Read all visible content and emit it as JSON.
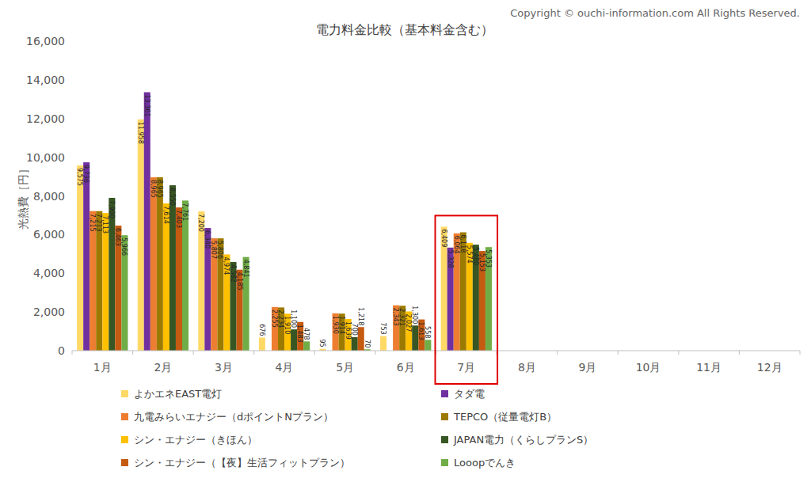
{
  "chart_data": {
    "type": "bar",
    "title": "電力料金比較（基本料金含む）",
    "annotations": [
      "Copyright © ouchi-information.com All Rights Reserved."
    ],
    "y_label": "光熱費［円］",
    "categories": [
      "1月",
      "2月",
      "3月",
      "4月",
      "5月",
      "6月",
      "7月",
      "8月",
      "9月",
      "10月",
      "11月",
      "12月"
    ],
    "ylim": [
      0,
      16000
    ],
    "yticks": [
      0,
      {
        "value": 2000,
        "label": "2,000"
      },
      {
        "value": 4000,
        "label": "4,000"
      },
      {
        "value": 6000,
        "label": "6,000"
      },
      {
        "value": 8000,
        "label": "8,000"
      },
      {
        "value": 10000,
        "label": "10,000"
      },
      {
        "value": 12000,
        "label": "12,000"
      },
      {
        "value": 14000,
        "label": "14,000"
      },
      {
        "value": 16000,
        "label": "16,000"
      }
    ],
    "grid": false,
    "data_labels": true,
    "legend": "bottom",
    "series": [
      {
        "name": "よかエネEAST電灯",
        "color": "#ffd966",
        "values": [
          9575,
          11958,
          7200,
          676,
          95,
          753,
          6409,
          null,
          null,
          null,
          null,
          null
        ],
        "value_labels": [
          "9,575",
          "11,958",
          "7,200",
          "676",
          "95",
          "753",
          "6,409",
          null,
          null,
          null,
          null,
          null
        ]
      },
      {
        "name": "タダ電",
        "color": "#7030a0",
        "values": [
          9736,
          13361,
          6340,
          null,
          null,
          null,
          5328,
          null,
          null,
          null,
          null,
          null
        ],
        "value_labels": [
          "9,736",
          "13,361",
          "6,340",
          null,
          null,
          null,
          "5,328",
          null,
          null,
          null,
          null,
          null
        ]
      },
      {
        "name": "九電みらいエナジー（dポイントNプラン）",
        "color": "#ed7d31",
        "values": [
          7215,
          8965,
          5807,
          2255,
          1930,
          2343,
          6064,
          null,
          null,
          null,
          null,
          null
        ],
        "value_labels": [
          "7,215",
          "8,965",
          "5,807",
          "2,255",
          "1,930",
          "2,343",
          "6,064",
          null,
          null,
          null,
          null,
          null
        ]
      },
      {
        "name": "TEPCO（従量電灯B）",
        "color": "#9c7a00",
        "values": [
          7213,
          8965,
          5806,
          2234,
          1914,
          2321,
          6118,
          null,
          null,
          null,
          null,
          null
        ],
        "value_labels": [
          "7,213",
          "8,965",
          "5,806",
          "2,234",
          "1,914",
          "2,321",
          "6,118",
          null,
          null,
          null,
          null,
          null
        ]
      },
      {
        "name": "シン・エナジー（きほん）",
        "color": "#ffc000",
        "values": [
          7113,
          7614,
          4974,
          1910,
          1639,
          2027,
          5574,
          null,
          null,
          null,
          null,
          null
        ],
        "value_labels": [
          "7,113",
          "7,614",
          "4,974",
          "1,910",
          "1,639",
          "2,027",
          "5,574",
          null,
          null,
          null,
          null,
          null
        ]
      },
      {
        "name": "JAPAN電力（くらしプランS）",
        "color": "#375623",
        "values": [
          7900,
          8550,
          4582,
          1100,
          700,
          1300,
          5480,
          null,
          null,
          null,
          null,
          null
        ],
        "value_labels": [
          "7,900",
          "8,550",
          "4,582",
          "1,100",
          "700",
          "1,300",
          "5,480",
          null,
          null,
          null,
          null,
          null
        ]
      },
      {
        "name": "シン・エナジー（【夜】生活フィットプラン）",
        "color": "#c55a11",
        "values": [
          6463,
          7403,
          4185,
          1483,
          1218,
          1613,
          5153,
          null,
          null,
          null,
          null,
          null
        ],
        "value_labels": [
          "6,463",
          "7,403",
          "4,185",
          "1,483",
          "1,218",
          "1,613",
          "5,153",
          null,
          null,
          null,
          null,
          null
        ]
      },
      {
        "name": "Looopでんき",
        "color": "#70ad47",
        "values": [
          5966,
          7761,
          4841,
          478,
          70,
          558,
          5353,
          null,
          null,
          null,
          null,
          null
        ],
        "value_labels": [
          "5,966",
          "7,761",
          "4,841",
          "478",
          "70",
          "558",
          "5,353",
          null,
          null,
          null,
          null,
          null
        ]
      }
    ]
  }
}
